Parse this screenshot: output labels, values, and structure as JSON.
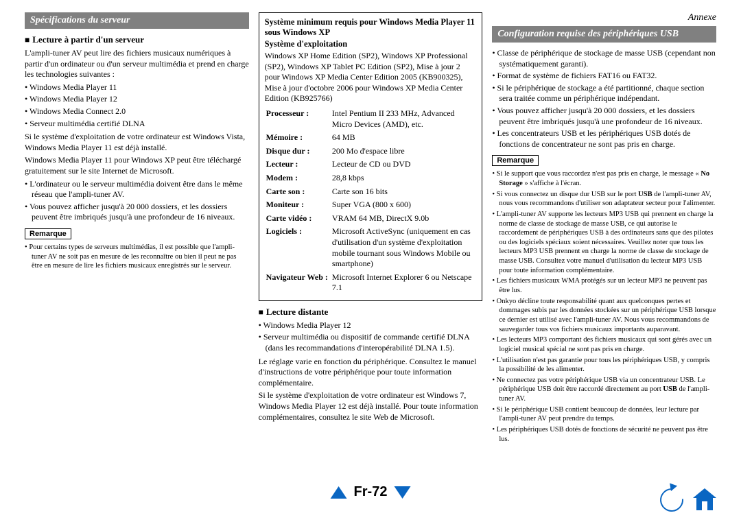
{
  "annex": "Annexe",
  "col1": {
    "header": "Spécifications du serveur",
    "sub1": "Lecture à partir d'un serveur",
    "p1": "L'ampli-tuner AV peut lire des fichiers musicaux numériques à partir d'un ordinateur ou d'un serveur multimédia et prend en charge les technologies suivantes :",
    "list1": [
      "Windows Media Player 11",
      "Windows Media Player 12",
      "Windows Media Connect 2.0",
      "Serveur multimédia certifié DLNA"
    ],
    "p2": "Si le système d'exploitation de votre ordinateur est Windows Vista, Windows Media Player 11 est déjà installé.",
    "p3": "Windows Media Player 11 pour Windows XP peut être téléchargé gratuitement sur le site Internet de Microsoft.",
    "list2": [
      "L'ordinateur ou le serveur multimédia doivent être dans le même réseau que l'ampli-tuner AV.",
      "Vous pouvez afficher jusqu'à 20 000 dossiers, et les dossiers peuvent être imbriqués jusqu'à une profondeur de 16 niveaux."
    ],
    "remark": "Remarque",
    "note1": "Pour certains types de serveurs multimédias, il est possible que l'ampli-tuner AV ne soit pas en mesure de les reconnaître ou bien il peut ne pas être en mesure de lire les fichiers musicaux enregistrés sur le serveur."
  },
  "col2": {
    "box_title": "Système minimum requis pour Windows Media Player 11 sous Windows XP",
    "os_label": "Système d'exploitation",
    "os_text": "Windows XP Home Edition (SP2), Windows XP Professional (SP2), Windows XP Tablet PC Edition (SP2), Mise à jour 2 pour Windows XP Media Center Edition 2005 (KB900325), Mise à jour d'octobre 2006 pour Windows XP Media Center Edition (KB925766)",
    "specs": [
      {
        "k": "Processeur :",
        "v": "Intel Pentium II 233 MHz, Advanced Micro Devices (AMD), etc."
      },
      {
        "k": "Mémoire :",
        "v": "64 MB"
      },
      {
        "k": "Disque dur :",
        "v": "200 Mo d'espace libre"
      },
      {
        "k": "Lecteur :",
        "v": "Lecteur de CD ou DVD"
      },
      {
        "k": "Modem :",
        "v": "28,8 kbps"
      },
      {
        "k": "Carte son :",
        "v": "Carte son 16 bits"
      },
      {
        "k": "Moniteur :",
        "v": "Super VGA (800 x 600)"
      },
      {
        "k": "Carte vidéo :",
        "v": "VRAM 64 MB, DirectX 9.0b"
      },
      {
        "k": "Logiciels :",
        "v": "Microsoft ActiveSync (uniquement en cas d'utilisation d'un système d'exploitation mobile tournant sous Windows Mobile ou smartphone)"
      },
      {
        "k": "Navigateur Web :",
        "v": "Microsoft Internet Explorer 6 ou Netscape 7.1"
      }
    ],
    "sub2": "Lecture distante",
    "list3": [
      "Windows Media Player 12",
      "Serveur multimédia ou dispositif de commande certifié DLNA (dans les recommandations d'interopérabilité DLNA 1.5)."
    ],
    "p4": "Le réglage varie en fonction du périphérique. Consultez le manuel d'instructions de votre périphérique pour toute information complémentaire.",
    "p5": "Si le système d'exploitation de votre ordinateur est Windows 7, Windows Media Player 12 est déjà installé. Pour toute information complémentaires, consultez le site Web de Microsoft."
  },
  "col3": {
    "header": "Configuration requise des périphériques USB",
    "list4": [
      "Classe de périphérique de stockage de masse USB (cependant non systématiquement garanti).",
      "Format de système de fichiers FAT16 ou FAT32.",
      "Si le périphérique de stockage a été partitionné, chaque section sera traitée comme un périphérique indépendant.",
      "Vous pouvez afficher jusqu'à 20 000 dossiers, et les dossiers peuvent être imbriqués jusqu'à une profondeur de 16 niveaux.",
      "Les concentrateurs USB et les périphériques USB dotés de fonctions de concentrateur ne sont pas pris en charge."
    ],
    "remark": "Remarque",
    "notes": [
      "Si le support que vous raccordez n'est pas pris en charge, le message « <b>No Storage</b> » s'affiche à l'écran.",
      "Si vous connectez un disque dur USB sur le port <b>USB</b> de l'ampli-tuner AV, nous vous recommandons d'utiliser son adaptateur secteur pour l'alimenter.",
      "L'ampli-tuner AV supporte les lecteurs MP3 USB qui prennent en charge la norme de classe de stockage de masse USB, ce qui autorise le raccordement de périphériques USB à des ordinateurs sans que des pilotes ou des logiciels spéciaux soient nécessaires. Veuillez noter que tous les lecteurs MP3 USB prennent en charge la norme de classe de stockage de masse USB. Consultez votre manuel d'utilisation du lecteur MP3 USB pour toute information complémentaire.",
      "Les fichiers musicaux WMA protégés sur un lecteur MP3 ne peuvent pas être lus.",
      "Onkyo décline toute responsabilité quant aux quelconques pertes et dommages subis par les données stockées sur un périphérique USB lorsque ce dernier est utilisé avec l'ampli-tuner AV. Nous vous recommandons de sauvegarder tous vos fichiers musicaux importants auparavant.",
      "Les lecteurs MP3 comportant des fichiers musicaux qui sont gérés avec un logiciel musical spécial ne sont pas pris en charge.",
      "L'utilisation n'est pas garantie pour tous les périphériques USB, y compris la possibilité de les alimenter.",
      "Ne connectez pas votre périphérique USB via un concentrateur USB. Le périphérique USB doit être raccordé directement au port <b>USB</b> de l'ampli-tuner AV.",
      "Si le périphérique USB contient beaucoup de données, leur lecture par l'ampli-tuner AV peut prendre du temps.",
      "Les périphériques USB dotés de fonctions de sécurité ne peuvent pas être lus."
    ]
  },
  "page_number": "Fr-72"
}
